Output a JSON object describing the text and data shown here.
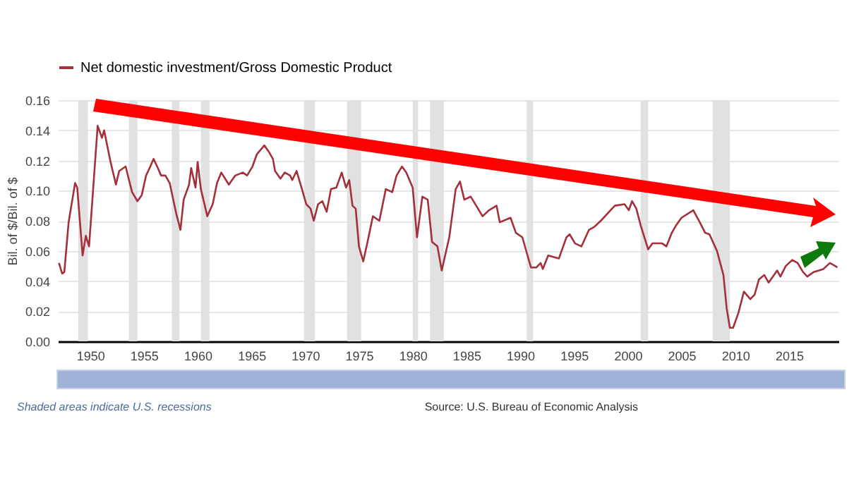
{
  "chart_data": {
    "type": "line",
    "ylabel": "Bil. of $/Bil. of $",
    "legend": "top left",
    "grid": "y",
    "xlim": [
      1947,
      2019.6
    ],
    "xticks": [
      1950,
      1955,
      1960,
      1965,
      1970,
      1975,
      1980,
      1985,
      1990,
      1995,
      2000,
      2005,
      2010,
      2015
    ],
    "ylim": [
      0,
      0.16
    ],
    "yticks": [
      {
        "value": 0,
        "label": "0.00"
      },
      {
        "value": 0.02,
        "label": "0.02"
      },
      {
        "value": 0.04,
        "label": "0.04"
      },
      {
        "value": 0.06,
        "label": "0.06"
      },
      {
        "value": 0.08,
        "label": "0.08"
      },
      {
        "value": 0.1,
        "label": "0.10"
      },
      {
        "value": 0.12,
        "label": "0.12"
      },
      {
        "value": 0.14,
        "label": "0.14"
      },
      {
        "value": 0.16,
        "label": "0.16"
      }
    ],
    "x": [
      1947.1,
      1947.4,
      1947.6,
      1948.0,
      1948.6,
      1948.8,
      1949.3,
      1949.6,
      1949.9,
      1950.7,
      1951.1,
      1951.3,
      1951.9,
      1952.4,
      1952.7,
      1953.3,
      1953.9,
      1954.4,
      1954.8,
      1955.2,
      1955.6,
      1955.9,
      1956.3,
      1956.6,
      1957.0,
      1957.4,
      1958.0,
      1958.4,
      1958.7,
      1959.2,
      1959.4,
      1959.8,
      1960.0,
      1960.3,
      1960.9,
      1961.4,
      1961.8,
      1962.2,
      1962.9,
      1963.5,
      1964.2,
      1964.6,
      1965.1,
      1965.5,
      1966.2,
      1966.6,
      1967.0,
      1967.2,
      1967.7,
      1968.1,
      1968.6,
      1968.8,
      1969.2,
      1969.7,
      1970.1,
      1970.5,
      1970.8,
      1971.2,
      1971.6,
      1972.0,
      1972.4,
      1972.9,
      1973.4,
      1973.8,
      1974.1,
      1974.4,
      1974.7,
      1975.0,
      1975.4,
      1975.8,
      1976.3,
      1976.9,
      1977.5,
      1978.1,
      1978.5,
      1979.0,
      1979.4,
      1980.0,
      1980.4,
      1980.9,
      1981.4,
      1981.8,
      1982.3,
      1982.7,
      1983.4,
      1984.0,
      1984.4,
      1984.8,
      1985.4,
      1986.5,
      1987.1,
      1987.8,
      1988.1,
      1989.1,
      1989.6,
      1990.2,
      1991.0,
      1991.5,
      1991.9,
      1992.1,
      1992.6,
      1993.6,
      1994.3,
      1994.6,
      1995.1,
      1995.7,
      1996.4,
      1996.9,
      1997.5,
      1998.4,
      1998.8,
      1999.7,
      2000.1,
      2000.4,
      2000.8,
      2001.2,
      2001.9,
      2002.3,
      2003.2,
      2003.6,
      2004.1,
      2004.5,
      2005.0,
      2006.1,
      2006.7,
      2007.2,
      2007.6,
      2008.3,
      2008.9,
      2009.2,
      2009.5,
      2009.8,
      2010.3,
      2010.8,
      2011.4,
      2011.8,
      2012.2,
      2012.7,
      2013.1,
      2013.6,
      2013.9,
      2014.2,
      2014.7,
      2015.3,
      2015.8,
      2016.3,
      2016.7,
      2017.3,
      2018.2,
      2018.8,
      2019.3,
      2019.5
    ],
    "series": [
      {
        "name": "Net domestic investment/Gross Domestic Product",
        "color": "#a3303a",
        "values": [
          0.052,
          0.045,
          0.046,
          0.079,
          0.105,
          0.102,
          0.057,
          0.07,
          0.063,
          0.143,
          0.135,
          0.14,
          0.119,
          0.104,
          0.113,
          0.116,
          0.099,
          0.093,
          0.097,
          0.11,
          0.116,
          0.121,
          0.115,
          0.11,
          0.11,
          0.105,
          0.085,
          0.074,
          0.094,
          0.104,
          0.115,
          0.102,
          0.119,
          0.101,
          0.083,
          0.091,
          0.105,
          0.112,
          0.104,
          0.11,
          0.112,
          0.11,
          0.116,
          0.124,
          0.13,
          0.126,
          0.121,
          0.113,
          0.108,
          0.112,
          0.11,
          0.107,
          0.113,
          0.101,
          0.091,
          0.088,
          0.08,
          0.091,
          0.093,
          0.086,
          0.101,
          0.102,
          0.112,
          0.102,
          0.107,
          0.09,
          0.088,
          0.063,
          0.053,
          0.066,
          0.083,
          0.08,
          0.101,
          0.099,
          0.11,
          0.116,
          0.112,
          0.102,
          0.069,
          0.096,
          0.094,
          0.066,
          0.063,
          0.047,
          0.069,
          0.101,
          0.106,
          0.094,
          0.096,
          0.083,
          0.087,
          0.09,
          0.079,
          0.082,
          0.072,
          0.069,
          0.049,
          0.049,
          0.052,
          0.048,
          0.057,
          0.055,
          0.069,
          0.071,
          0.065,
          0.063,
          0.074,
          0.076,
          0.08,
          0.087,
          0.09,
          0.091,
          0.087,
          0.093,
          0.088,
          0.077,
          0.061,
          0.065,
          0.065,
          0.063,
          0.072,
          0.077,
          0.082,
          0.087,
          0.079,
          0.072,
          0.071,
          0.06,
          0.044,
          0.022,
          0.009,
          0.009,
          0.019,
          0.033,
          0.028,
          0.031,
          0.041,
          0.044,
          0.039,
          0.044,
          0.047,
          0.043,
          0.05,
          0.054,
          0.052,
          0.046,
          0.043,
          0.046,
          0.048,
          0.052,
          0.05,
          0.049
        ]
      }
    ],
    "bands": [
      {
        "axis": "x",
        "from": 1948.9,
        "to": 1949.8,
        "color": "#e1e1e1"
      },
      {
        "axis": "x",
        "from": 1953.6,
        "to": 1954.4,
        "color": "#e1e1e1"
      },
      {
        "axis": "x",
        "from": 1957.6,
        "to": 1958.3,
        "color": "#e1e1e1"
      },
      {
        "axis": "x",
        "from": 1960.3,
        "to": 1961.1,
        "color": "#e1e1e1"
      },
      {
        "axis": "x",
        "from": 1969.9,
        "to": 1970.9,
        "color": "#e1e1e1"
      },
      {
        "axis": "x",
        "from": 1973.9,
        "to": 1975.2,
        "color": "#e1e1e1"
      },
      {
        "axis": "x",
        "from": 1980.0,
        "to": 1980.5,
        "color": "#e1e1e1"
      },
      {
        "axis": "x",
        "from": 1981.6,
        "to": 1982.9,
        "color": "#e1e1e1"
      },
      {
        "axis": "x",
        "from": 1990.6,
        "to": 1991.2,
        "color": "#e1e1e1"
      },
      {
        "axis": "x",
        "from": 2001.2,
        "to": 2001.9,
        "color": "#e1e1e1"
      },
      {
        "axis": "x",
        "from": 2007.9,
        "to": 2009.5,
        "color": "#e1e1e1"
      }
    ],
    "annotations": [
      "Shaded areas indicate U.S. recessions",
      "Source: U.S. Bureau of Economic Analysis"
    ]
  }
}
